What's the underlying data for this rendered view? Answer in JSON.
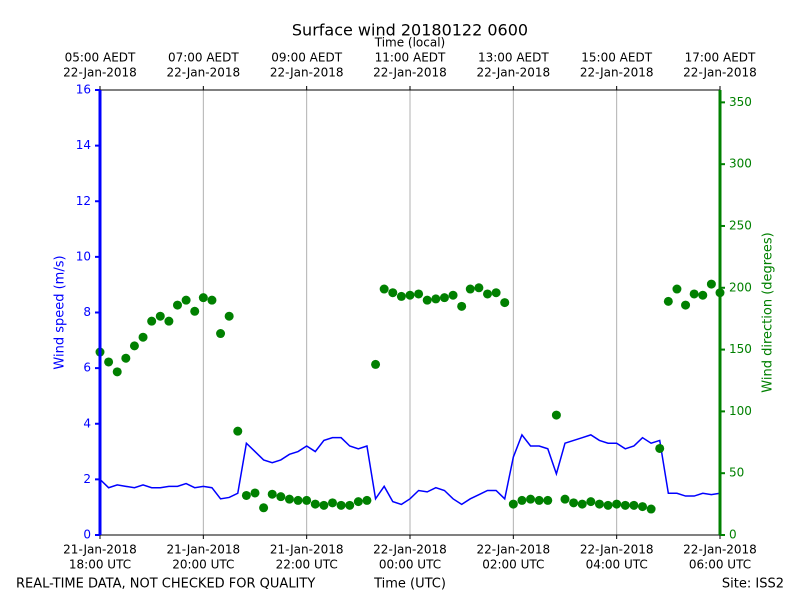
{
  "chart_data": {
    "type": "line",
    "title": "Surface wind 20180122 0600",
    "x2label": "Time (local)",
    "xlabel": "Time (UTC)",
    "ylabel": "Wind speed (m/s)",
    "y2label": "Wind direction (degrees)",
    "footer_left": "REAL-TIME DATA, NOT CHECKED FOR QUALITY",
    "footer_right": "Site: ISS2",
    "grid": true,
    "xlim": [
      "2018-01-21 18:00",
      "2018-01-22 06:00"
    ],
    "xticks": [
      {
        "value": "2018-01-21 18:00",
        "label": [
          "21-Jan-2018",
          "18:00 UTC"
        ]
      },
      {
        "value": "2018-01-21 20:00",
        "label": [
          "21-Jan-2018",
          "20:00 UTC"
        ]
      },
      {
        "value": "2018-01-21 22:00",
        "label": [
          "21-Jan-2018",
          "22:00 UTC"
        ]
      },
      {
        "value": "2018-01-22 00:00",
        "label": [
          "22-Jan-2018",
          "00:00 UTC"
        ]
      },
      {
        "value": "2018-01-22 02:00",
        "label": [
          "22-Jan-2018",
          "02:00 UTC"
        ]
      },
      {
        "value": "2018-01-22 04:00",
        "label": [
          "22-Jan-2018",
          "04:00 UTC"
        ]
      },
      {
        "value": "2018-01-22 06:00",
        "label": [
          "22-Jan-2018",
          "06:00 UTC"
        ]
      }
    ],
    "x2ticks": [
      {
        "value": "2018-01-21 18:00",
        "label": [
          "05:00 AEDT",
          "22-Jan-2018"
        ]
      },
      {
        "value": "2018-01-21 20:00",
        "label": [
          "07:00 AEDT",
          "22-Jan-2018"
        ]
      },
      {
        "value": "2018-01-21 22:00",
        "label": [
          "09:00 AEDT",
          "22-Jan-2018"
        ]
      },
      {
        "value": "2018-01-22 00:00",
        "label": [
          "11:00 AEDT",
          "22-Jan-2018"
        ]
      },
      {
        "value": "2018-01-22 02:00",
        "label": [
          "13:00 AEDT",
          "22-Jan-2018"
        ]
      },
      {
        "value": "2018-01-22 04:00",
        "label": [
          "15:00 AEDT",
          "22-Jan-2018"
        ]
      },
      {
        "value": "2018-01-22 06:00",
        "label": [
          "17:00 AEDT",
          "22-Jan-2018"
        ]
      }
    ],
    "ylim": [
      0,
      16
    ],
    "yticks": [
      0,
      2,
      4,
      6,
      8,
      10,
      12,
      14,
      16
    ],
    "y2lim": [
      0,
      360
    ],
    "y2ticks": [
      0,
      50,
      100,
      150,
      200,
      250,
      300,
      350
    ],
    "y_color": "#0000ff",
    "y2_color": "#008000",
    "x": [
      "2018-01-21 18:00",
      "2018-01-21 18:10",
      "2018-01-21 18:20",
      "2018-01-21 18:30",
      "2018-01-21 18:40",
      "2018-01-21 18:50",
      "2018-01-21 19:00",
      "2018-01-21 19:10",
      "2018-01-21 19:20",
      "2018-01-21 19:30",
      "2018-01-21 19:40",
      "2018-01-21 19:50",
      "2018-01-21 20:00",
      "2018-01-21 20:10",
      "2018-01-21 20:20",
      "2018-01-21 20:30",
      "2018-01-21 20:40",
      "2018-01-21 20:50",
      "2018-01-21 21:00",
      "2018-01-21 21:10",
      "2018-01-21 21:20",
      "2018-01-21 21:30",
      "2018-01-21 21:40",
      "2018-01-21 21:50",
      "2018-01-21 22:00",
      "2018-01-21 22:10",
      "2018-01-21 22:20",
      "2018-01-21 22:30",
      "2018-01-21 22:40",
      "2018-01-21 22:50",
      "2018-01-21 23:00",
      "2018-01-21 23:10",
      "2018-01-21 23:20",
      "2018-01-21 23:30",
      "2018-01-21 23:40",
      "2018-01-21 23:50",
      "2018-01-22 00:00",
      "2018-01-22 00:10",
      "2018-01-22 00:20",
      "2018-01-22 00:30",
      "2018-01-22 00:40",
      "2018-01-22 00:50",
      "2018-01-22 01:00",
      "2018-01-22 01:10",
      "2018-01-22 01:20",
      "2018-01-22 01:30",
      "2018-01-22 01:40",
      "2018-01-22 01:50",
      "2018-01-22 02:00",
      "2018-01-22 02:10",
      "2018-01-22 02:20",
      "2018-01-22 02:30",
      "2018-01-22 02:40",
      "2018-01-22 02:50",
      "2018-01-22 03:00",
      "2018-01-22 03:10",
      "2018-01-22 03:20",
      "2018-01-22 03:30",
      "2018-01-22 03:40",
      "2018-01-22 03:50",
      "2018-01-22 04:00",
      "2018-01-22 04:10",
      "2018-01-22 04:20",
      "2018-01-22 04:30",
      "2018-01-22 04:40",
      "2018-01-22 04:50",
      "2018-01-22 05:00",
      "2018-01-22 05:10",
      "2018-01-22 05:20",
      "2018-01-22 05:30",
      "2018-01-22 05:40",
      "2018-01-22 05:50",
      "2018-01-22 06:00"
    ],
    "series": [
      {
        "mode": "line",
        "axis": "y",
        "color": "#0000ff",
        "values": [
          2.0,
          1.7,
          1.8,
          1.75,
          1.7,
          1.8,
          1.7,
          1.7,
          1.75,
          1.75,
          1.85,
          1.7,
          1.75,
          1.7,
          1.3,
          1.35,
          1.5,
          3.3,
          3.0,
          2.7,
          2.6,
          2.7,
          2.9,
          3.0,
          3.2,
          3.0,
          3.4,
          3.5,
          3.5,
          3.2,
          3.1,
          3.2,
          1.3,
          1.75,
          1.2,
          1.1,
          1.3,
          1.6,
          1.55,
          1.7,
          1.6,
          1.3,
          1.1,
          1.3,
          1.45,
          1.6,
          1.6,
          1.3,
          2.8,
          3.6,
          3.2,
          3.2,
          3.1,
          2.2,
          3.3,
          3.4,
          3.5,
          3.6,
          3.4,
          3.3,
          3.3,
          3.1,
          3.2,
          3.5,
          3.3,
          3.4,
          1.5,
          1.5,
          1.4,
          1.4,
          1.5,
          1.45,
          1.5
        ]
      },
      {
        "mode": "markers",
        "axis": "y2",
        "color": "#008000",
        "values": [
          148,
          140,
          132,
          143,
          153,
          160,
          173,
          177,
          173,
          186,
          190,
          181,
          192,
          190,
          163,
          177,
          84,
          32,
          34,
          22,
          33,
          31,
          29,
          28,
          28,
          25,
          24,
          26,
          24,
          24,
          27,
          28,
          138,
          199,
          196,
          193,
          194,
          195,
          190,
          191,
          192,
          194,
          185,
          199,
          200,
          195,
          196,
          188,
          25,
          28,
          29,
          28,
          28,
          97,
          29,
          26,
          25,
          27,
          25,
          24,
          25,
          24,
          24,
          23,
          21,
          70,
          189,
          199,
          186,
          195,
          194,
          203,
          196
        ]
      }
    ]
  }
}
